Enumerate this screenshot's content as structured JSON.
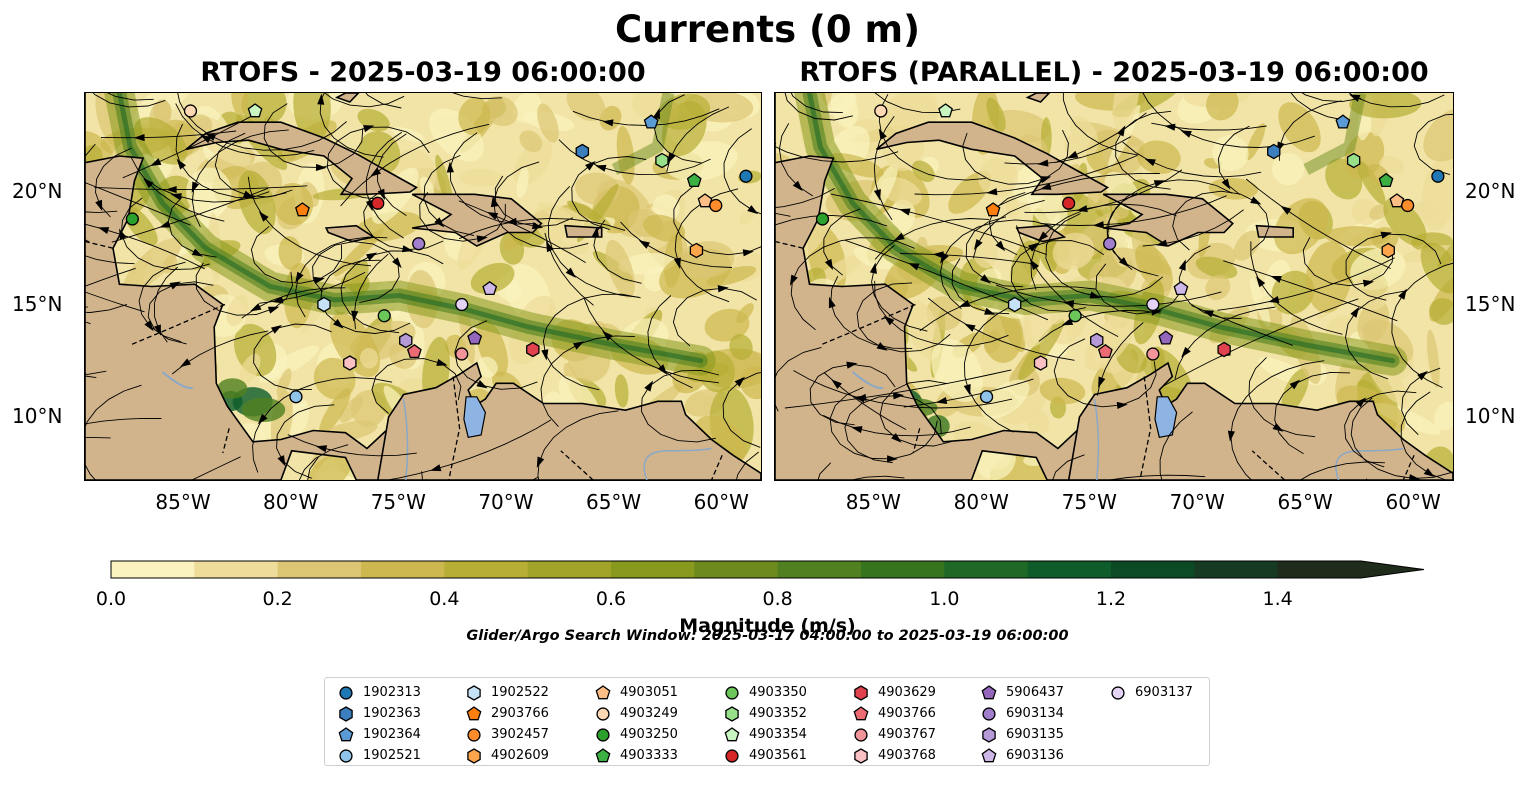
{
  "title": "Currents (0 m)",
  "panels": [
    {
      "title": "RTOFS - 2025-03-19 06:00:00"
    },
    {
      "title": "RTOFS (PARALLEL) - 2025-03-19 06:00:00"
    }
  ],
  "map": {
    "lon_range": [
      -89.6,
      -58.2
    ],
    "lat_range": [
      7.2,
      24.4
    ],
    "lon_ticks": [
      "85°W",
      "80°W",
      "75°W",
      "70°W",
      "65°W",
      "60°W"
    ],
    "lat_ticks": [
      "20°N",
      "15°N",
      "10°N"
    ],
    "land_color": "#d2b48c",
    "lake_color": "#8db4e2"
  },
  "colorbar": {
    "label": "Magnitude (m/s)",
    "ticks": [
      "0.0",
      "0.2",
      "0.4",
      "0.6",
      "0.8",
      "1.0",
      "1.2",
      "1.4"
    ],
    "range": [
      0,
      1.5
    ],
    "colors": [
      "#fbf3bf",
      "#eedd9a",
      "#dcc674",
      "#cdb84f",
      "#b6ae35",
      "#a1a428",
      "#89991d",
      "#6d8b1d",
      "#50801f",
      "#37741e",
      "#1f6927",
      "#0d5c2a",
      "#0b4a25",
      "#173a22",
      "#1f2c1b"
    ]
  },
  "search_window": "Glider/Argo Search Window: 2025-03-17 04:00:00 to 2025-03-19 06:00:00",
  "legend": [
    {
      "id": "1902313",
      "marker": "circle",
      "color": "#1f77b4"
    },
    {
      "id": "1902363",
      "marker": "hexagon",
      "color": "#3b7fbf"
    },
    {
      "id": "1902364",
      "marker": "pentagon",
      "color": "#5a9bd5"
    },
    {
      "id": "1902521",
      "marker": "circle",
      "color": "#8fc3ea"
    },
    {
      "id": "1902522",
      "marker": "hexagon",
      "color": "#c6e2f7"
    },
    {
      "id": "2903766",
      "marker": "pentagon",
      "color": "#ff7f0e"
    },
    {
      "id": "3902457",
      "marker": "circle",
      "color": "#ff8c2b"
    },
    {
      "id": "4902609",
      "marker": "hexagon",
      "color": "#ffa64d"
    },
    {
      "id": "4903051",
      "marker": "pentagon",
      "color": "#ffbe86"
    },
    {
      "id": "4903249",
      "marker": "circle",
      "color": "#ffd9b3"
    },
    {
      "id": "4903250",
      "marker": "circle",
      "color": "#2ca02c"
    },
    {
      "id": "4903333",
      "marker": "pentagon",
      "color": "#3cb043"
    },
    {
      "id": "4903350",
      "marker": "circle",
      "color": "#6cc65a"
    },
    {
      "id": "4903352",
      "marker": "hexagon",
      "color": "#98df8a"
    },
    {
      "id": "4903354",
      "marker": "pentagon",
      "color": "#c8f5c0"
    },
    {
      "id": "4903561",
      "marker": "circle",
      "color": "#d62728"
    },
    {
      "id": "4903629",
      "marker": "hexagon",
      "color": "#e0434e"
    },
    {
      "id": "4903766",
      "marker": "pentagon",
      "color": "#ec6a74"
    },
    {
      "id": "4903767",
      "marker": "circle",
      "color": "#f2959a"
    },
    {
      "id": "4903768",
      "marker": "hexagon",
      "color": "#fbc0c4"
    },
    {
      "id": "5906437",
      "marker": "pentagon",
      "color": "#9467bd"
    },
    {
      "id": "6903134",
      "marker": "circle",
      "color": "#a27fcc"
    },
    {
      "id": "6903135",
      "marker": "hexagon",
      "color": "#b69ad8"
    },
    {
      "id": "6903136",
      "marker": "pentagon",
      "color": "#cdb8e8"
    },
    {
      "id": "6903137",
      "marker": "circle",
      "color": "#e4d3f5"
    }
  ],
  "float_positions": [
    {
      "id": "1902313",
      "lon": -58.9,
      "lat": 20.7
    },
    {
      "id": "1902363",
      "lon": -66.5,
      "lat": 21.8
    },
    {
      "id": "1902364",
      "lon": -63.3,
      "lat": 23.1
    },
    {
      "id": "1902521",
      "lon": -79.8,
      "lat": 10.9
    },
    {
      "id": "1902522",
      "lon": -78.5,
      "lat": 15.0
    },
    {
      "id": "2903766",
      "lon": -79.5,
      "lat": 19.2
    },
    {
      "id": "3902457",
      "lon": -60.3,
      "lat": 19.4
    },
    {
      "id": "4902609",
      "lon": -61.2,
      "lat": 17.4
    },
    {
      "id": "4903051",
      "lon": -60.8,
      "lat": 19.6
    },
    {
      "id": "4903249",
      "lon": -84.7,
      "lat": 23.6
    },
    {
      "id": "4903250",
      "lon": -87.4,
      "lat": 18.8
    },
    {
      "id": "4903333",
      "lon": -61.3,
      "lat": 20.5
    },
    {
      "id": "4903350",
      "lon": -75.7,
      "lat": 14.5
    },
    {
      "id": "4903352",
      "lon": -62.8,
      "lat": 21.4
    },
    {
      "id": "4903354",
      "lon": -81.7,
      "lat": 23.6
    },
    {
      "id": "4903561",
      "lon": -76.0,
      "lat": 19.5
    },
    {
      "id": "4903629",
      "lon": -68.8,
      "lat": 13.0
    },
    {
      "id": "4903766",
      "lon": -74.3,
      "lat": 12.9
    },
    {
      "id": "4903767",
      "lon": -72.1,
      "lat": 12.8
    },
    {
      "id": "4903768",
      "lon": -77.3,
      "lat": 12.4
    },
    {
      "id": "5906437",
      "lon": -71.5,
      "lat": 13.5
    },
    {
      "id": "6903134",
      "lon": -74.1,
      "lat": 17.7
    },
    {
      "id": "6903135",
      "lon": -74.7,
      "lat": 13.4
    },
    {
      "id": "6903136",
      "lon": -70.8,
      "lat": 15.7
    },
    {
      "id": "6903137",
      "lon": -72.1,
      "lat": 15.0
    }
  ]
}
